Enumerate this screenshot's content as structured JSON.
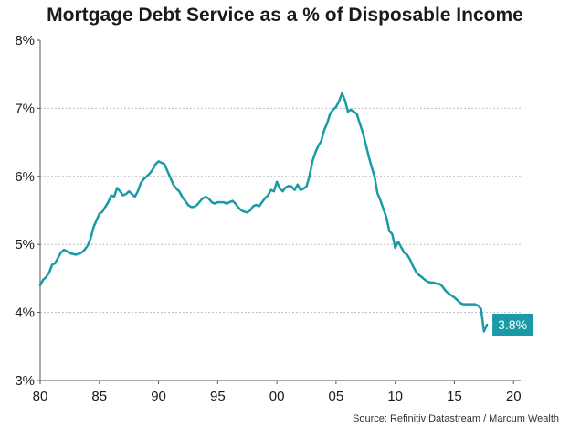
{
  "chart_data": {
    "type": "line",
    "title": "Mortgage Debt Service as a % of Disposable Income",
    "source": "Source: Refinitiv Datastream / Marcum Wealth",
    "xlabel": "",
    "ylabel": "",
    "xlim": [
      1980,
      2020.6
    ],
    "ylim": [
      3,
      8
    ],
    "y_ticks": [
      {
        "value": 3,
        "label": "3%"
      },
      {
        "value": 4,
        "label": "4%"
      },
      {
        "value": 5,
        "label": "5%"
      },
      {
        "value": 6,
        "label": "6%"
      },
      {
        "value": 7,
        "label": "7%"
      },
      {
        "value": 8,
        "label": "8%"
      }
    ],
    "x_ticks": [
      {
        "value": 1980,
        "label": "80"
      },
      {
        "value": 1985,
        "label": "85"
      },
      {
        "value": 1990,
        "label": "90"
      },
      {
        "value": 1995,
        "label": "95"
      },
      {
        "value": 2000,
        "label": "00"
      },
      {
        "value": 2005,
        "label": "05"
      },
      {
        "value": 2010,
        "label": "10"
      },
      {
        "value": 2015,
        "label": "15"
      },
      {
        "value": 2020,
        "label": "20"
      }
    ],
    "grid": "horizontal",
    "line_color": "#1a9aa7",
    "end_label": "3.8%",
    "series": [
      {
        "values": [
          [
            1980.0,
            4.4
          ],
          [
            1980.25,
            4.48
          ],
          [
            1980.5,
            4.52
          ],
          [
            1980.75,
            4.58
          ],
          [
            1981.0,
            4.7
          ],
          [
            1981.25,
            4.72
          ],
          [
            1981.5,
            4.8
          ],
          [
            1981.75,
            4.88
          ],
          [
            1982.0,
            4.92
          ],
          [
            1982.25,
            4.9
          ],
          [
            1982.5,
            4.87
          ],
          [
            1982.75,
            4.86
          ],
          [
            1983.0,
            4.85
          ],
          [
            1983.25,
            4.86
          ],
          [
            1983.5,
            4.88
          ],
          [
            1983.75,
            4.92
          ],
          [
            1984.0,
            4.98
          ],
          [
            1984.25,
            5.08
          ],
          [
            1984.5,
            5.25
          ],
          [
            1984.75,
            5.35
          ],
          [
            1985.0,
            5.45
          ],
          [
            1985.25,
            5.48
          ],
          [
            1985.5,
            5.55
          ],
          [
            1985.75,
            5.62
          ],
          [
            1986.0,
            5.72
          ],
          [
            1986.25,
            5.7
          ],
          [
            1986.5,
            5.83
          ],
          [
            1986.75,
            5.78
          ],
          [
            1987.0,
            5.72
          ],
          [
            1987.25,
            5.74
          ],
          [
            1987.5,
            5.78
          ],
          [
            1987.75,
            5.74
          ],
          [
            1988.0,
            5.7
          ],
          [
            1988.25,
            5.78
          ],
          [
            1988.5,
            5.9
          ],
          [
            1988.75,
            5.96
          ],
          [
            1989.0,
            6.0
          ],
          [
            1989.25,
            6.04
          ],
          [
            1989.5,
            6.1
          ],
          [
            1989.75,
            6.18
          ],
          [
            1990.0,
            6.22
          ],
          [
            1990.25,
            6.2
          ],
          [
            1990.5,
            6.18
          ],
          [
            1990.75,
            6.08
          ],
          [
            1991.0,
            5.98
          ],
          [
            1991.25,
            5.88
          ],
          [
            1991.5,
            5.82
          ],
          [
            1991.75,
            5.78
          ],
          [
            1992.0,
            5.7
          ],
          [
            1992.25,
            5.64
          ],
          [
            1992.5,
            5.58
          ],
          [
            1992.75,
            5.55
          ],
          [
            1993.0,
            5.55
          ],
          [
            1993.25,
            5.58
          ],
          [
            1993.5,
            5.63
          ],
          [
            1993.75,
            5.68
          ],
          [
            1994.0,
            5.7
          ],
          [
            1994.25,
            5.67
          ],
          [
            1994.5,
            5.62
          ],
          [
            1994.75,
            5.6
          ],
          [
            1995.0,
            5.62
          ],
          [
            1995.25,
            5.62
          ],
          [
            1995.5,
            5.62
          ],
          [
            1995.75,
            5.6
          ],
          [
            1996.0,
            5.62
          ],
          [
            1996.25,
            5.64
          ],
          [
            1996.5,
            5.6
          ],
          [
            1996.75,
            5.54
          ],
          [
            1997.0,
            5.5
          ],
          [
            1997.25,
            5.48
          ],
          [
            1997.5,
            5.47
          ],
          [
            1997.75,
            5.5
          ],
          [
            1998.0,
            5.56
          ],
          [
            1998.25,
            5.58
          ],
          [
            1998.5,
            5.56
          ],
          [
            1998.75,
            5.62
          ],
          [
            1999.0,
            5.68
          ],
          [
            1999.25,
            5.72
          ],
          [
            1999.5,
            5.8
          ],
          [
            1999.75,
            5.78
          ],
          [
            2000.0,
            5.92
          ],
          [
            2000.25,
            5.82
          ],
          [
            2000.5,
            5.78
          ],
          [
            2000.75,
            5.84
          ],
          [
            2001.0,
            5.86
          ],
          [
            2001.25,
            5.85
          ],
          [
            2001.5,
            5.8
          ],
          [
            2001.75,
            5.88
          ],
          [
            2002.0,
            5.8
          ],
          [
            2002.25,
            5.82
          ],
          [
            2002.5,
            5.85
          ],
          [
            2002.75,
            6.0
          ],
          [
            2003.0,
            6.22
          ],
          [
            2003.25,
            6.35
          ],
          [
            2003.5,
            6.45
          ],
          [
            2003.75,
            6.52
          ],
          [
            2004.0,
            6.68
          ],
          [
            2004.25,
            6.78
          ],
          [
            2004.5,
            6.92
          ],
          [
            2004.75,
            6.98
          ],
          [
            2005.0,
            7.02
          ],
          [
            2005.25,
            7.1
          ],
          [
            2005.5,
            7.22
          ],
          [
            2005.75,
            7.12
          ],
          [
            2006.0,
            6.95
          ],
          [
            2006.25,
            6.98
          ],
          [
            2006.5,
            6.95
          ],
          [
            2006.75,
            6.92
          ],
          [
            2007.0,
            6.78
          ],
          [
            2007.25,
            6.65
          ],
          [
            2007.5,
            6.48
          ],
          [
            2007.75,
            6.3
          ],
          [
            2008.0,
            6.14
          ],
          [
            2008.25,
            6.0
          ],
          [
            2008.5,
            5.75
          ],
          [
            2008.75,
            5.65
          ],
          [
            2009.0,
            5.52
          ],
          [
            2009.25,
            5.4
          ],
          [
            2009.5,
            5.2
          ],
          [
            2009.75,
            5.15
          ],
          [
            2010.0,
            4.95
          ],
          [
            2010.25,
            5.04
          ],
          [
            2010.5,
            4.96
          ],
          [
            2010.75,
            4.88
          ],
          [
            2011.0,
            4.85
          ],
          [
            2011.25,
            4.78
          ],
          [
            2011.5,
            4.68
          ],
          [
            2011.75,
            4.6
          ],
          [
            2012.0,
            4.55
          ],
          [
            2012.25,
            4.52
          ],
          [
            2012.5,
            4.48
          ],
          [
            2012.75,
            4.45
          ],
          [
            2013.0,
            4.44
          ],
          [
            2013.25,
            4.44
          ],
          [
            2013.5,
            4.42
          ],
          [
            2013.75,
            4.42
          ],
          [
            2014.0,
            4.38
          ],
          [
            2014.25,
            4.32
          ],
          [
            2014.5,
            4.28
          ],
          [
            2014.75,
            4.25
          ],
          [
            2015.0,
            4.22
          ],
          [
            2015.25,
            4.18
          ],
          [
            2015.5,
            4.14
          ],
          [
            2015.75,
            4.12
          ],
          [
            2016.0,
            4.12
          ],
          [
            2016.25,
            4.12
          ],
          [
            2016.5,
            4.12
          ],
          [
            2016.75,
            4.12
          ],
          [
            2017.0,
            4.1
          ],
          [
            2017.25,
            4.05
          ],
          [
            2017.5,
            3.72
          ],
          [
            2017.75,
            3.82
          ]
        ]
      }
    ]
  }
}
